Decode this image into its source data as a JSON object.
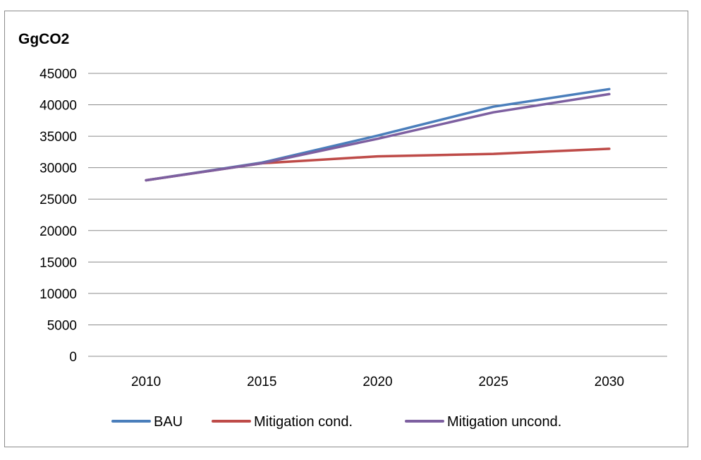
{
  "chart_data": {
    "type": "line",
    "title": "",
    "ylabel": "GgCO2",
    "xlabel": "",
    "categories": [
      "2010",
      "2015",
      "2020",
      "2025",
      "2030"
    ],
    "yticks": [
      "0",
      "5000",
      "10000",
      "15000",
      "20000",
      "25000",
      "30000",
      "35000",
      "40000",
      "45000"
    ],
    "ylim": [
      0,
      45000
    ],
    "grid": true,
    "legend_position": "bottom",
    "series": [
      {
        "name": "BAU",
        "color": "#4a7ebb",
        "values": [
          28000,
          30800,
          35100,
          39700,
          42500
        ]
      },
      {
        "name": "Mitigation cond.",
        "color": "#be4b48",
        "values": [
          28000,
          30700,
          31800,
          32200,
          33000
        ]
      },
      {
        "name": "Mitigation uncond.",
        "color": "#7d5fa0",
        "values": [
          28000,
          30700,
          34600,
          38800,
          41700
        ]
      }
    ]
  }
}
